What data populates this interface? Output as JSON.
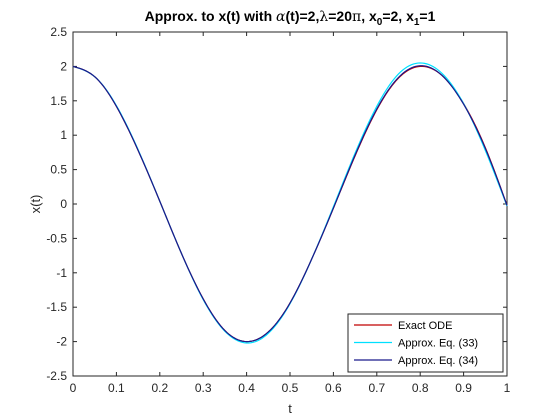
{
  "chart_data": {
    "type": "line",
    "title": {
      "prefix": "Approx. to x(t) with ",
      "alpha": "α",
      "t_open": "(t)=2,",
      "lambda": "λ",
      "lambda_val": "=20",
      "pi": "π",
      "x0_part": ", x",
      "x0_sub": "0",
      "x0_val": "=2, x",
      "x1_sub": "1",
      "x1_val": "=1"
    },
    "xlabel": "t",
    "ylabel": "x(t)",
    "xlim": [
      0,
      1
    ],
    "ylim": [
      -2.5,
      2.5
    ],
    "xticks": [
      0,
      0.1,
      0.2,
      0.3,
      0.4,
      0.5,
      0.6,
      0.7,
      0.8,
      0.9,
      1
    ],
    "xtick_labels": [
      "0",
      "0.1",
      "0.2",
      "0.3",
      "0.4",
      "0.5",
      "0.6",
      "0.7",
      "0.8",
      "0.9",
      "1"
    ],
    "yticks": [
      -2.5,
      -2,
      -1.5,
      -1,
      -0.5,
      0,
      0.5,
      1,
      1.5,
      2,
      2.5
    ],
    "ytick_labels": [
      "-2.5",
      "-2",
      "-1.5",
      "-1",
      "-0.5",
      "0",
      "0.5",
      "1",
      "1.5",
      "2",
      "2.5"
    ],
    "grid": false,
    "legend_position": "bottom-right",
    "series": [
      {
        "name": "Exact ODE",
        "color": "#c00000",
        "x": [
          0,
          0.05,
          0.1,
          0.15,
          0.2,
          0.25,
          0.3,
          0.35,
          0.4,
          0.45,
          0.5,
          0.55,
          0.6,
          0.65,
          0.7,
          0.75,
          0.8,
          0.85,
          0.9,
          0.95,
          1
        ],
        "y": [
          2,
          1.85,
          1.42,
          0.78,
          0.04,
          -0.72,
          -1.38,
          -1.84,
          -2.0,
          -1.86,
          -1.44,
          -0.8,
          -0.06,
          0.7,
          1.37,
          1.83,
          2.0,
          1.87,
          1.46,
          0.82,
          -0.02
        ]
      },
      {
        "name": "Approx. Eq. (33)",
        "color": "#00e0ff",
        "x": [
          0,
          0.05,
          0.1,
          0.15,
          0.2,
          0.25,
          0.3,
          0.35,
          0.4,
          0.45,
          0.5,
          0.55,
          0.6,
          0.65,
          0.7,
          0.75,
          0.8,
          0.85,
          0.9,
          0.95,
          1
        ],
        "y": [
          2,
          1.85,
          1.43,
          0.79,
          0.04,
          -0.72,
          -1.39,
          -1.85,
          -2.02,
          -1.88,
          -1.45,
          -0.8,
          -0.04,
          0.74,
          1.42,
          1.89,
          2.05,
          1.9,
          1.46,
          0.78,
          -0.03
        ]
      },
      {
        "name": "Approx. Eq. (34)",
        "color": "#1a1a8c",
        "x": [
          0,
          0.05,
          0.1,
          0.15,
          0.2,
          0.25,
          0.3,
          0.35,
          0.4,
          0.45,
          0.5,
          0.55,
          0.6,
          0.65,
          0.7,
          0.75,
          0.8,
          0.85,
          0.9,
          0.95,
          1
        ],
        "y": [
          2,
          1.85,
          1.42,
          0.78,
          0.04,
          -0.72,
          -1.38,
          -1.84,
          -2.0,
          -1.86,
          -1.44,
          -0.8,
          -0.06,
          0.71,
          1.38,
          1.84,
          2.01,
          1.87,
          1.45,
          0.81,
          -0.02
        ]
      }
    ]
  }
}
